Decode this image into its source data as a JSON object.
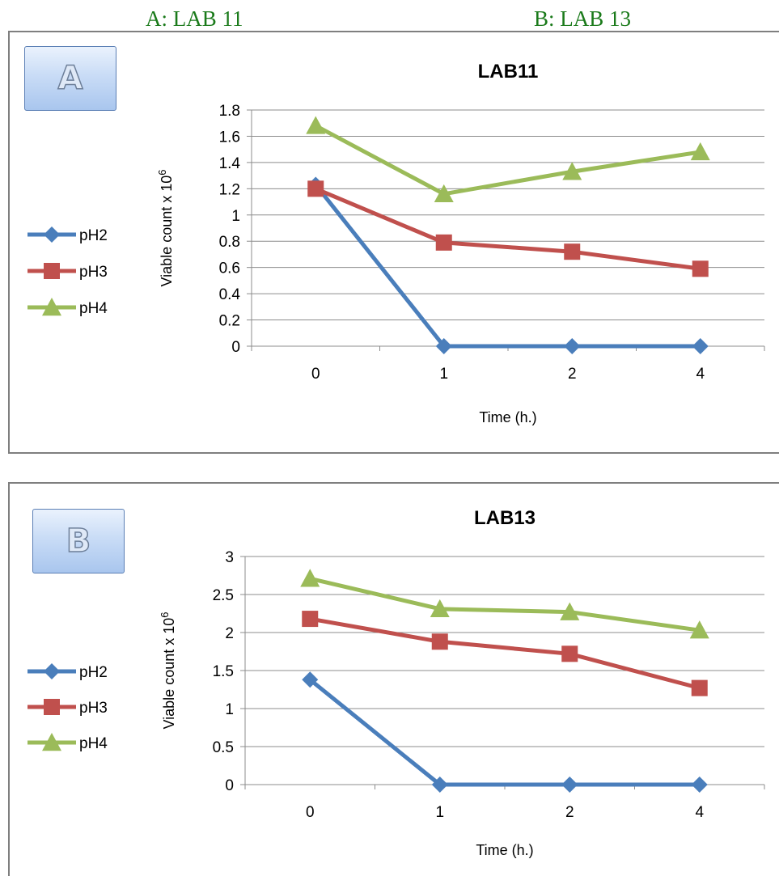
{
  "captions": {
    "a": "A: LAB 11",
    "b": "B: LAB 13"
  },
  "chart_data": [
    {
      "type": "line",
      "badge": "A",
      "title": "LAB11",
      "xlabel": "Time (h.)",
      "ylabel": "Viable count x 10",
      "ylabel_sup": "6",
      "categories": [
        "0",
        "1",
        "2",
        "4"
      ],
      "ylim": [
        0,
        1.8
      ],
      "yticks": [
        "0",
        "0.2",
        "0.4",
        "0.6",
        "0.8",
        "1",
        "1.2",
        "1.4",
        "1.6",
        "1.8"
      ],
      "grid": true,
      "legend": "left",
      "series": [
        {
          "name": "pH2",
          "values": [
            1.23,
            0,
            0,
            0
          ],
          "color": "#4a7ebb",
          "marker": "diamond"
        },
        {
          "name": "pH3",
          "values": [
            1.2,
            0.79,
            0.72,
            0.59
          ],
          "color": "#c0504d",
          "marker": "square"
        },
        {
          "name": "pH4",
          "values": [
            1.68,
            1.16,
            1.33,
            1.48
          ],
          "color": "#9bbb59",
          "marker": "triangle"
        }
      ]
    },
    {
      "type": "line",
      "badge": "B",
      "title": "LAB13",
      "xlabel": "Time (h.)",
      "ylabel": "Viable count x 10",
      "ylabel_sup": "6",
      "categories": [
        "0",
        "1",
        "2",
        "4"
      ],
      "ylim": [
        0,
        3
      ],
      "yticks": [
        "0",
        "0.5",
        "1",
        "1.5",
        "2",
        "2.5",
        "3"
      ],
      "grid": true,
      "legend": "left",
      "series": [
        {
          "name": "pH2",
          "values": [
            1.38,
            0,
            0,
            0
          ],
          "color": "#4a7ebb",
          "marker": "diamond"
        },
        {
          "name": "pH3",
          "values": [
            2.18,
            1.88,
            1.72,
            1.27
          ],
          "color": "#c0504d",
          "marker": "square"
        },
        {
          "name": "pH4",
          "values": [
            2.71,
            2.31,
            2.27,
            2.03
          ],
          "color": "#9bbb59",
          "marker": "triangle"
        }
      ]
    }
  ]
}
